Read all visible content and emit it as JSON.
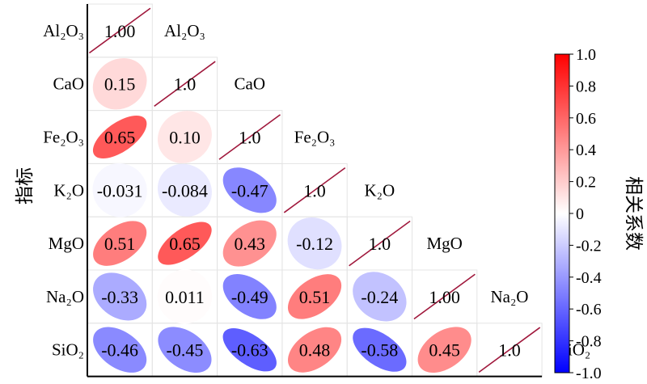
{
  "chart_data": {
    "type": "heatmap",
    "title": "",
    "ylabel": "指标",
    "variables": [
      "Al₂O₃",
      "CaO",
      "Fe₂O₃",
      "K₂O",
      "MgO",
      "Na₂O",
      "SiO₂"
    ],
    "cells": [
      {
        "row": 0,
        "col": 0,
        "label": "1.00",
        "value": 1.0
      },
      {
        "row": 1,
        "col": 0,
        "label": "0.15",
        "value": 0.15
      },
      {
        "row": 1,
        "col": 1,
        "label": "1.0",
        "value": 1.0
      },
      {
        "row": 2,
        "col": 0,
        "label": "0.65",
        "value": 0.65
      },
      {
        "row": 2,
        "col": 1,
        "label": "0.10",
        "value": 0.1
      },
      {
        "row": 2,
        "col": 2,
        "label": "1.0",
        "value": 1.0
      },
      {
        "row": 3,
        "col": 0,
        "label": "-0.031",
        "value": -0.031
      },
      {
        "row": 3,
        "col": 1,
        "label": "-0.084",
        "value": -0.084
      },
      {
        "row": 3,
        "col": 2,
        "label": "-0.47",
        "value": -0.47
      },
      {
        "row": 3,
        "col": 3,
        "label": "1.0",
        "value": 1.0
      },
      {
        "row": 4,
        "col": 0,
        "label": "0.51",
        "value": 0.51
      },
      {
        "row": 4,
        "col": 1,
        "label": "0.65",
        "value": 0.65
      },
      {
        "row": 4,
        "col": 2,
        "label": "0.43",
        "value": 0.43
      },
      {
        "row": 4,
        "col": 3,
        "label": "-0.12",
        "value": -0.12
      },
      {
        "row": 4,
        "col": 4,
        "label": "1.0",
        "value": 1.0
      },
      {
        "row": 5,
        "col": 0,
        "label": "-0.33",
        "value": -0.33
      },
      {
        "row": 5,
        "col": 1,
        "label": "0.011",
        "value": 0.011
      },
      {
        "row": 5,
        "col": 2,
        "label": "-0.49",
        "value": -0.49
      },
      {
        "row": 5,
        "col": 3,
        "label": "0.51",
        "value": 0.51
      },
      {
        "row": 5,
        "col": 4,
        "label": "-0.24",
        "value": -0.24
      },
      {
        "row": 5,
        "col": 5,
        "label": "1.00",
        "value": 1.0
      },
      {
        "row": 6,
        "col": 0,
        "label": "-0.46",
        "value": -0.46
      },
      {
        "row": 6,
        "col": 1,
        "label": "-0.45",
        "value": -0.45
      },
      {
        "row": 6,
        "col": 2,
        "label": "-0.63",
        "value": -0.63
      },
      {
        "row": 6,
        "col": 3,
        "label": "0.48",
        "value": 0.48
      },
      {
        "row": 6,
        "col": 4,
        "label": "-0.58",
        "value": -0.58
      },
      {
        "row": 6,
        "col": 5,
        "label": "0.45",
        "value": 0.45
      },
      {
        "row": 6,
        "col": 6,
        "label": "1.0",
        "value": 1.0
      }
    ],
    "colorbar": {
      "label": "相关系数",
      "range": [
        -1.0,
        1.0
      ],
      "ticks": [
        "1.0",
        "0.8",
        "0.6",
        "0.4",
        "0.2",
        "0",
        "-0.2",
        "-0.4",
        "-0.6",
        "-0.8",
        "-1.0"
      ],
      "colors": {
        "negative": "#0000ff",
        "zero": "#ffffff",
        "positive": "#ff0000"
      }
    },
    "diagonal_line_color": "#a0183c",
    "grid": true
  }
}
